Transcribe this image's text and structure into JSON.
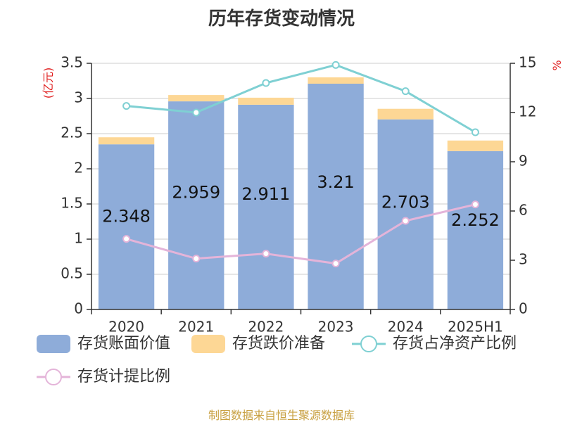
{
  "title": "历年存货变动情况",
  "source": "制图数据来自恒生聚源数据库",
  "units": {
    "left": "(亿元)",
    "right": "%"
  },
  "colors": {
    "book_value": "#8eacd9",
    "impairment": "#fdd795",
    "net_asset_ratio": "#7fd0d3",
    "provision_ratio": "#e4b4d9",
    "title": "#333333",
    "source": "#c8a040",
    "unit": "#e02020",
    "axis": "#333333",
    "grid": "#cccccc"
  },
  "legend": [
    {
      "label": "存货账面价值",
      "kind": "bar",
      "color": "#8eacd9"
    },
    {
      "label": "存货跌价准备",
      "kind": "bar",
      "color": "#fdd795"
    },
    {
      "label": "存货占净资产比例",
      "kind": "line",
      "color": "#7fd0d3"
    },
    {
      "label": "存货计提比例",
      "kind": "line",
      "color": "#e4b4d9"
    }
  ],
  "chart_data": {
    "type": "bar",
    "stacked": true,
    "categories": [
      "2020",
      "2021",
      "2022",
      "2023",
      "2024",
      "2025H1"
    ],
    "series": [
      {
        "name": "存货账面价值",
        "axis": "left",
        "type": "bar",
        "values": [
          2.348,
          2.959,
          2.911,
          3.21,
          2.703,
          2.252
        ],
        "labels": [
          "2.348",
          "2.959",
          "2.911",
          "3.21",
          "2.703",
          "2.252"
        ]
      },
      {
        "name": "存货跌价准备",
        "axis": "left",
        "type": "bar",
        "values": [
          0.1,
          0.09,
          0.1,
          0.09,
          0.15,
          0.15
        ]
      },
      {
        "name": "存货占净资产比例",
        "axis": "right",
        "type": "line",
        "values": [
          12.4,
          12.0,
          13.8,
          14.9,
          13.3,
          10.8
        ]
      },
      {
        "name": "存货计提比例",
        "axis": "right",
        "type": "line",
        "values": [
          4.3,
          3.1,
          3.4,
          2.8,
          5.4,
          6.4
        ]
      }
    ],
    "y_left": {
      "min": 0,
      "max": 3.5,
      "ticks": [
        "0",
        "0.5",
        "1",
        "1.5",
        "2",
        "2.5",
        "3",
        "3.5"
      ]
    },
    "y_right": {
      "min": 0,
      "max": 15,
      "ticks": [
        "0",
        "3",
        "6",
        "9",
        "12",
        "15"
      ]
    },
    "grid": true,
    "legend_position": "bottom"
  }
}
